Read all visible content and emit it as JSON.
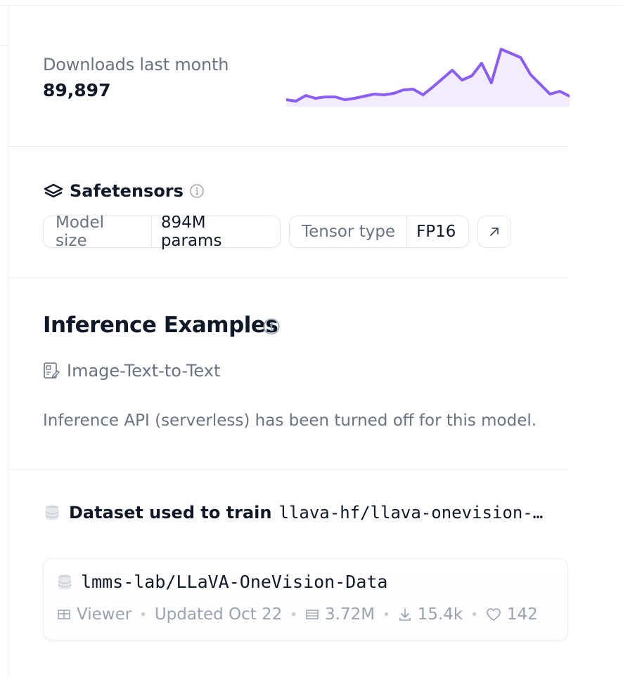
{
  "downloads": {
    "label": "Downloads last month",
    "value": "89,897",
    "accent": "#8b5cf6",
    "fill": "#ede9fe"
  },
  "chart_data": {
    "type": "area",
    "title": "",
    "xlabel": "",
    "ylabel": "",
    "values": [
      10,
      8,
      16,
      12,
      14,
      14,
      10,
      12,
      15,
      18,
      17,
      19,
      24,
      25,
      17,
      28,
      40,
      52,
      38,
      44,
      62,
      34,
      82,
      76,
      70,
      46,
      32,
      18,
      22,
      15
    ]
  },
  "safetensors": {
    "title": "Safetensors",
    "info_icon": "info-icon",
    "model_size_label": "Model size",
    "model_size_value": "894M params",
    "tensor_type_label": "Tensor type",
    "tensor_type_value": "FP16",
    "link_icon": "arrow-up-right-icon"
  },
  "inference": {
    "title": "Inference Examples",
    "task": "Image-Text-to-Text",
    "task_icon": "image-text-icon",
    "note": "Inference API (serverless) has been turned off for this model."
  },
  "dataset": {
    "heading": "Dataset used to train",
    "model": "llava-hf/llava-onevision-…",
    "card": {
      "name": "lmms-lab/LLaVA-OneVision-Data",
      "viewer": "Viewer",
      "updated": "Updated Oct 22",
      "rows": "3.72M",
      "downloads": "15.4k",
      "likes": "142"
    }
  }
}
